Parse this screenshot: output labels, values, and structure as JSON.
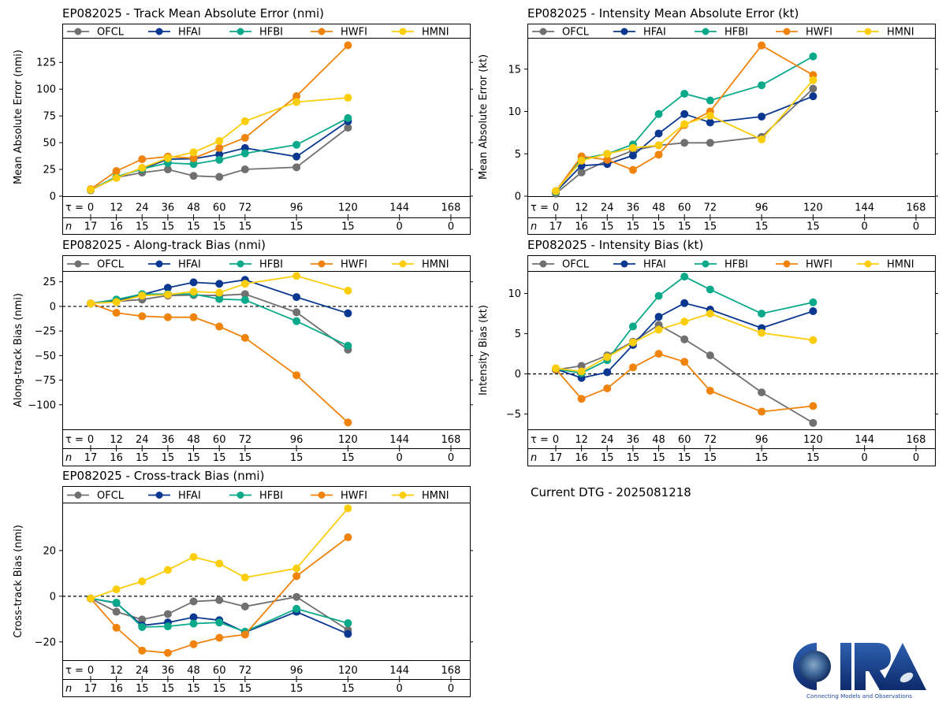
{
  "footer": {
    "dtg_text": "Current DTG - 2025081218",
    "logo_text": "CIRA",
    "logo_tagline": "Connecting Models and Observations"
  },
  "series_meta": [
    {
      "name": "OFCL",
      "color": "#707070"
    },
    {
      "name": "HFAI",
      "color": "#0a3790"
    },
    {
      "name": "HFBI",
      "color": "#0aa98a"
    },
    {
      "name": "HWFI",
      "color": "#ef830c"
    },
    {
      "name": "HMNI",
      "color": "#fccd0a"
    }
  ],
  "tau_label": "τ = ",
  "n_label": "n",
  "chart_data": [
    {
      "id": "track",
      "type": "line",
      "title": "EP082025 - Track Mean Absolute Error (nmi)",
      "ylabel": "Mean Absolute Error (nmi)",
      "xlabel": "",
      "x": [
        0,
        12,
        24,
        36,
        48,
        60,
        72,
        96,
        120
      ],
      "xticks": [
        0,
        12,
        24,
        36,
        48,
        60,
        72,
        96,
        120,
        144,
        168
      ],
      "n_counts": [
        17,
        16,
        15,
        15,
        15,
        15,
        15,
        15,
        15,
        0,
        0
      ],
      "ylim": [
        0,
        148
      ],
      "yticks": [
        0,
        25,
        50,
        75,
        100,
        125
      ],
      "zero_line": false,
      "legend": "top",
      "series": [
        {
          "name": "OFCL",
          "values": [
            5.5,
            17.5,
            22,
            25,
            19,
            18,
            25,
            27,
            64
          ]
        },
        {
          "name": "HFAI",
          "values": [
            6,
            18,
            25.5,
            34.5,
            35,
            39,
            45,
            37,
            70
          ]
        },
        {
          "name": "HFBI",
          "values": [
            6,
            18,
            25.5,
            31,
            30,
            34,
            40,
            48,
            73
          ]
        },
        {
          "name": "HWFI",
          "values": [
            6.5,
            23.5,
            34.5,
            37,
            35.5,
            45,
            54.5,
            93.5,
            141
          ]
        },
        {
          "name": "HMNI",
          "values": [
            6,
            17,
            26.5,
            35.5,
            41,
            51.5,
            70,
            88,
            92
          ]
        }
      ]
    },
    {
      "id": "intensity",
      "type": "line",
      "title": "EP082025 - Intensity Mean Absolute Error (kt)",
      "ylabel": "Mean Absolute Error (kt)",
      "xlabel": "",
      "x": [
        0,
        12,
        24,
        36,
        48,
        60,
        72,
        96,
        120
      ],
      "xticks": [
        0,
        12,
        24,
        36,
        48,
        60,
        72,
        96,
        120,
        144,
        168
      ],
      "n_counts": [
        17,
        16,
        15,
        15,
        15,
        15,
        15,
        15,
        15,
        0,
        0
      ],
      "ylim": [
        0,
        18.7
      ],
      "yticks": [
        0,
        5,
        10,
        15
      ],
      "zero_line": false,
      "legend": "top",
      "series": [
        {
          "name": "OFCL",
          "values": [
            0.3,
            2.8,
            4.2,
            5.4,
            6.0,
            6.3,
            6.3,
            7.0,
            12.7
          ]
        },
        {
          "name": "HFAI",
          "values": [
            0.5,
            3.6,
            3.8,
            4.8,
            7.4,
            9.7,
            8.7,
            9.4,
            11.8
          ]
        },
        {
          "name": "HFBI",
          "values": [
            0.5,
            4.4,
            5.0,
            6.1,
            9.7,
            12.1,
            11.3,
            13.1,
            16.5
          ]
        },
        {
          "name": "HWFI",
          "values": [
            0.6,
            4.7,
            4.3,
            3.1,
            4.9,
            8.4,
            10.0,
            17.8,
            14.3
          ]
        },
        {
          "name": "HMNI",
          "values": [
            0.6,
            4.2,
            5.0,
            5.7,
            6.0,
            8.5,
            9.5,
            6.7,
            13.7
          ]
        }
      ]
    },
    {
      "id": "along",
      "type": "line",
      "title": "EP082025 - Along-track Bias (nmi)",
      "ylabel": "Along-track Bias (nmi)",
      "xlabel": "",
      "x": [
        0,
        12,
        24,
        36,
        48,
        60,
        72,
        96,
        120
      ],
      "xticks": [
        0,
        12,
        24,
        36,
        48,
        60,
        72,
        96,
        120,
        144,
        168
      ],
      "n_counts": [
        17,
        16,
        15,
        15,
        15,
        15,
        15,
        15,
        15,
        0,
        0
      ],
      "ylim": [
        -125,
        36
      ],
      "yticks": [
        -100,
        -75,
        -50,
        -25,
        0,
        25
      ],
      "zero_line": true,
      "legend": "top",
      "series": [
        {
          "name": "OFCL",
          "values": [
            3,
            5,
            7,
            11,
            11.5,
            11,
            12.5,
            -6,
            -44
          ]
        },
        {
          "name": "HFAI",
          "values": [
            3,
            6,
            12,
            19,
            24.5,
            23,
            27,
            9.5,
            -7
          ]
        },
        {
          "name": "HFBI",
          "values": [
            3,
            7,
            12.5,
            12.5,
            12.5,
            7.5,
            6.5,
            -15,
            -40
          ]
        },
        {
          "name": "HWFI",
          "values": [
            3,
            -6.5,
            -10,
            -11,
            -11,
            -20.5,
            -32,
            -70,
            -118
          ]
        },
        {
          "name": "HMNI",
          "values": [
            3,
            4.5,
            11,
            12,
            15,
            14,
            23,
            31,
            16
          ]
        }
      ]
    },
    {
      "id": "intbias",
      "type": "line",
      "title": "EP082025 - Intensity Bias (kt)",
      "ylabel": "Intensity Bias (kt)",
      "xlabel": "",
      "x": [
        0,
        12,
        24,
        36,
        48,
        60,
        72,
        96,
        120
      ],
      "xticks": [
        0,
        12,
        24,
        36,
        48,
        60,
        72,
        96,
        120,
        144,
        168
      ],
      "n_counts": [
        17,
        16,
        15,
        15,
        15,
        15,
        15,
        15,
        15,
        0,
        0
      ],
      "ylim": [
        -6.9,
        12.8
      ],
      "yticks": [
        -5,
        0,
        5,
        10
      ],
      "zero_line": true,
      "legend": "top",
      "series": [
        {
          "name": "OFCL",
          "values": [
            0.5,
            1.0,
            2.3,
            4.0,
            6.1,
            4.3,
            2.3,
            -2.3,
            -6.1
          ]
        },
        {
          "name": "HFAI",
          "values": [
            0.6,
            -0.5,
            0.2,
            3.6,
            7.1,
            8.8,
            8.0,
            5.7,
            7.8
          ]
        },
        {
          "name": "HFBI",
          "values": [
            0.6,
            0.1,
            1.7,
            5.9,
            9.7,
            12.1,
            10.5,
            7.5,
            8.9
          ]
        },
        {
          "name": "HWFI",
          "values": [
            0.6,
            -3.1,
            -1.8,
            0.8,
            2.5,
            1.5,
            -2.1,
            -4.7,
            -4.0
          ]
        },
        {
          "name": "HMNI",
          "values": [
            0.7,
            0.3,
            2.1,
            3.9,
            5.5,
            6.5,
            7.5,
            5.1,
            4.2
          ]
        }
      ]
    },
    {
      "id": "cross",
      "type": "line",
      "title": "EP082025 - Cross-track Bias (nmi)",
      "ylabel": "Cross-track Bias (nmi)",
      "xlabel": "",
      "x": [
        0,
        12,
        24,
        36,
        48,
        60,
        72,
        96,
        120
      ],
      "xticks": [
        0,
        12,
        24,
        36,
        48,
        60,
        72,
        96,
        120,
        144,
        168
      ],
      "n_counts": [
        17,
        16,
        15,
        15,
        15,
        15,
        15,
        15,
        15,
        0,
        0
      ],
      "ylim": [
        -28,
        41
      ],
      "yticks": [
        -20,
        0,
        20
      ],
      "zero_line": true,
      "legend": "top",
      "series": [
        {
          "name": "OFCL",
          "values": [
            -1,
            -6.8,
            -10.2,
            -7.8,
            -2.3,
            -1.7,
            -4.5,
            -0.3,
            -14.8
          ]
        },
        {
          "name": "HFAI",
          "values": [
            -1,
            -3,
            -12.8,
            -11.5,
            -9.2,
            -10.5,
            -15.8,
            -6.8,
            -16.5
          ]
        },
        {
          "name": "HFBI",
          "values": [
            -1,
            -2.8,
            -13.5,
            -13.2,
            -12,
            -11.5,
            -15.5,
            -5.5,
            -11.8
          ]
        },
        {
          "name": "HWFI",
          "values": [
            -1,
            -13.8,
            -23.8,
            -24.8,
            -21,
            -18.2,
            -16.8,
            8.8,
            25.8
          ]
        },
        {
          "name": "HMNI",
          "values": [
            -1,
            3,
            6.5,
            11.5,
            17.2,
            14.3,
            8.2,
            12.2,
            38.5
          ]
        }
      ]
    }
  ]
}
